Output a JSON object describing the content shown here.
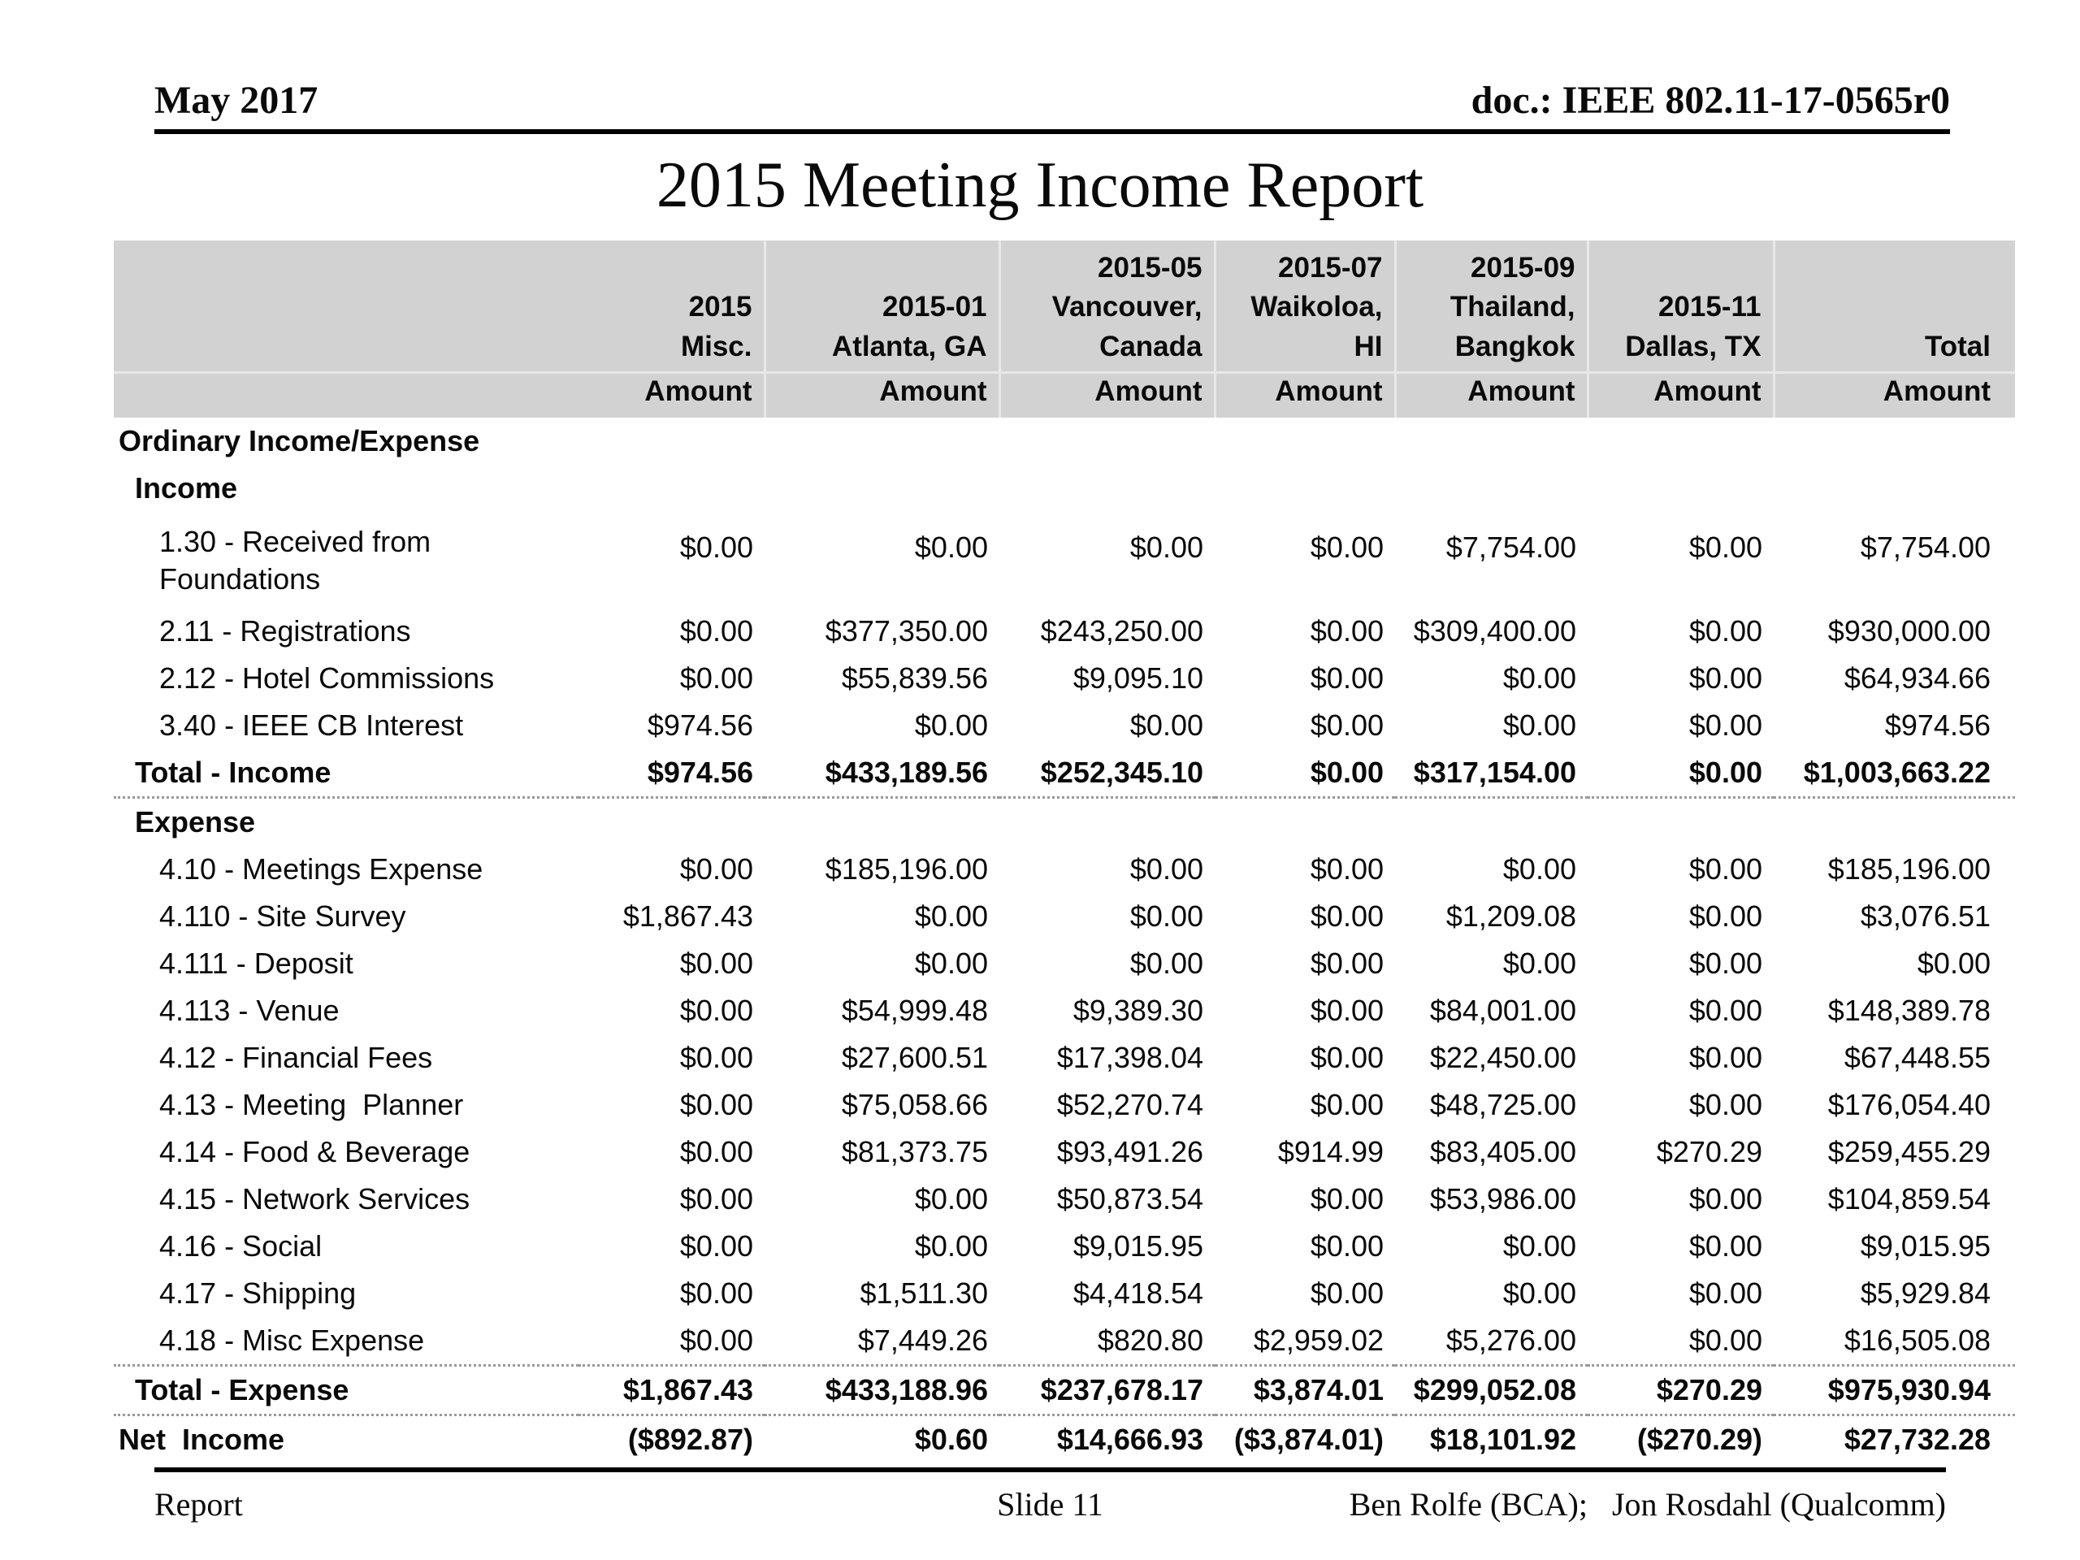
{
  "page_header": {
    "date": "May 2017",
    "doc_id": "doc.: IEEE 802.11-17-0565r0"
  },
  "title": "2015 Meeting Income Report",
  "table": {
    "columns": [
      {
        "header": "2015\nMisc.",
        "amount": "Amount"
      },
      {
        "header": "2015-01\nAtlanta, GA",
        "amount": "Amount"
      },
      {
        "header": "2015-05\nVancouver,\nCanada",
        "amount": "Amount"
      },
      {
        "header": "2015-07\nWaikoloa,\nHI",
        "amount": "Amount"
      },
      {
        "header": "2015-09\nThailand,\nBangkok",
        "amount": "Amount"
      },
      {
        "header": "2015-11\nDallas, TX",
        "amount": "Amount"
      },
      {
        "header": "Total",
        "amount": "Amount"
      }
    ],
    "rows": [
      {
        "type": "section",
        "label": "Ordinary Income/Expense",
        "values": null
      },
      {
        "type": "subsection",
        "label": "Income",
        "values": null
      },
      {
        "type": "item",
        "flags": [
          "two-line"
        ],
        "label": "1.30 - Received from\nFoundations",
        "values": [
          "$0.00",
          "$0.00",
          "$0.00",
          "$0.00",
          "$7,754.00",
          "$0.00",
          "$7,754.00"
        ]
      },
      {
        "type": "item",
        "label": "2.11 - Registrations",
        "values": [
          "$0.00",
          "$377,350.00",
          "$243,250.00",
          "$0.00",
          "$309,400.00",
          "$0.00",
          "$930,000.00"
        ]
      },
      {
        "type": "item",
        "label": "2.12 - Hotel Commissions",
        "values": [
          "$0.00",
          "$55,839.56",
          "$9,095.10",
          "$0.00",
          "$0.00",
          "$0.00",
          "$64,934.66"
        ]
      },
      {
        "type": "item",
        "label": "3.40 - IEEE CB Interest",
        "values": [
          "$974.56",
          "$0.00",
          "$0.00",
          "$0.00",
          "$0.00",
          "$0.00",
          "$974.56"
        ]
      },
      {
        "type": "total",
        "flags": [
          "rule-below"
        ],
        "label": "Total - Income",
        "values": [
          "$974.56",
          "$433,189.56",
          "$252,345.10",
          "$0.00",
          "$317,154.00",
          "$0.00",
          "$1,003,663.22"
        ]
      },
      {
        "type": "subsection",
        "label": "Expense",
        "values": null
      },
      {
        "type": "item",
        "label": "4.10 - Meetings Expense",
        "values": [
          "$0.00",
          "$185,196.00",
          "$0.00",
          "$0.00",
          "$0.00",
          "$0.00",
          "$185,196.00"
        ]
      },
      {
        "type": "item",
        "label": "4.110 - Site Survey",
        "values": [
          "$1,867.43",
          "$0.00",
          "$0.00",
          "$0.00",
          "$1,209.08",
          "$0.00",
          "$3,076.51"
        ]
      },
      {
        "type": "item",
        "label": "4.111 - Deposit",
        "values": [
          "$0.00",
          "$0.00",
          "$0.00",
          "$0.00",
          "$0.00",
          "$0.00",
          "$0.00"
        ]
      },
      {
        "type": "item",
        "label": "4.113 - Venue",
        "values": [
          "$0.00",
          "$54,999.48",
          "$9,389.30",
          "$0.00",
          "$84,001.00",
          "$0.00",
          "$148,389.78"
        ]
      },
      {
        "type": "item",
        "label": "4.12 - Financial Fees",
        "values": [
          "$0.00",
          "$27,600.51",
          "$17,398.04",
          "$0.00",
          "$22,450.00",
          "$0.00",
          "$67,448.55"
        ]
      },
      {
        "type": "item",
        "label": "4.13 - Meeting  Planner",
        "values": [
          "$0.00",
          "$75,058.66",
          "$52,270.74",
          "$0.00",
          "$48,725.00",
          "$0.00",
          "$176,054.40"
        ]
      },
      {
        "type": "item",
        "label": "4.14 - Food & Beverage",
        "values": [
          "$0.00",
          "$81,373.75",
          "$93,491.26",
          "$914.99",
          "$83,405.00",
          "$270.29",
          "$259,455.29"
        ]
      },
      {
        "type": "item",
        "label": "4.15 - Network Services",
        "values": [
          "$0.00",
          "$0.00",
          "$50,873.54",
          "$0.00",
          "$53,986.00",
          "$0.00",
          "$104,859.54"
        ]
      },
      {
        "type": "item",
        "label": "4.16 - Social",
        "values": [
          "$0.00",
          "$0.00",
          "$9,015.95",
          "$0.00",
          "$0.00",
          "$0.00",
          "$9,015.95"
        ]
      },
      {
        "type": "item",
        "label": "4.17 - Shipping",
        "values": [
          "$0.00",
          "$1,511.30",
          "$4,418.54",
          "$0.00",
          "$0.00",
          "$0.00",
          "$5,929.84"
        ]
      },
      {
        "type": "item",
        "label": "4.18 - Misc Expense",
        "values": [
          "$0.00",
          "$7,449.26",
          "$820.80",
          "$2,959.02",
          "$5,276.00",
          "$0.00",
          "$16,505.08"
        ]
      },
      {
        "type": "total",
        "flags": [
          "rule-above"
        ],
        "label": "Total - Expense",
        "values": [
          "$1,867.43",
          "$433,188.96",
          "$237,678.17",
          "$3,874.01",
          "$299,052.08",
          "$270.29",
          "$975,930.94"
        ]
      },
      {
        "type": "net",
        "flags": [
          "rule-above"
        ],
        "label": "Net  Income",
        "values": [
          "($892.87)",
          "$0.60",
          "$14,666.93",
          "($3,874.01)",
          "$18,101.92",
          "($270.29)",
          "$27,732.28"
        ]
      }
    ]
  },
  "footer": {
    "left": "Report",
    "center": "Slide 11",
    "right": "Ben Rolfe (BCA);   Jon Rosdahl (Qualcomm)"
  },
  "colors": {
    "header_fill": "#d2d2d2",
    "header_separator": "#e8e8e8",
    "dotted_rule": "#999999",
    "rule": "#000000",
    "text": "#0a0a0a"
  }
}
